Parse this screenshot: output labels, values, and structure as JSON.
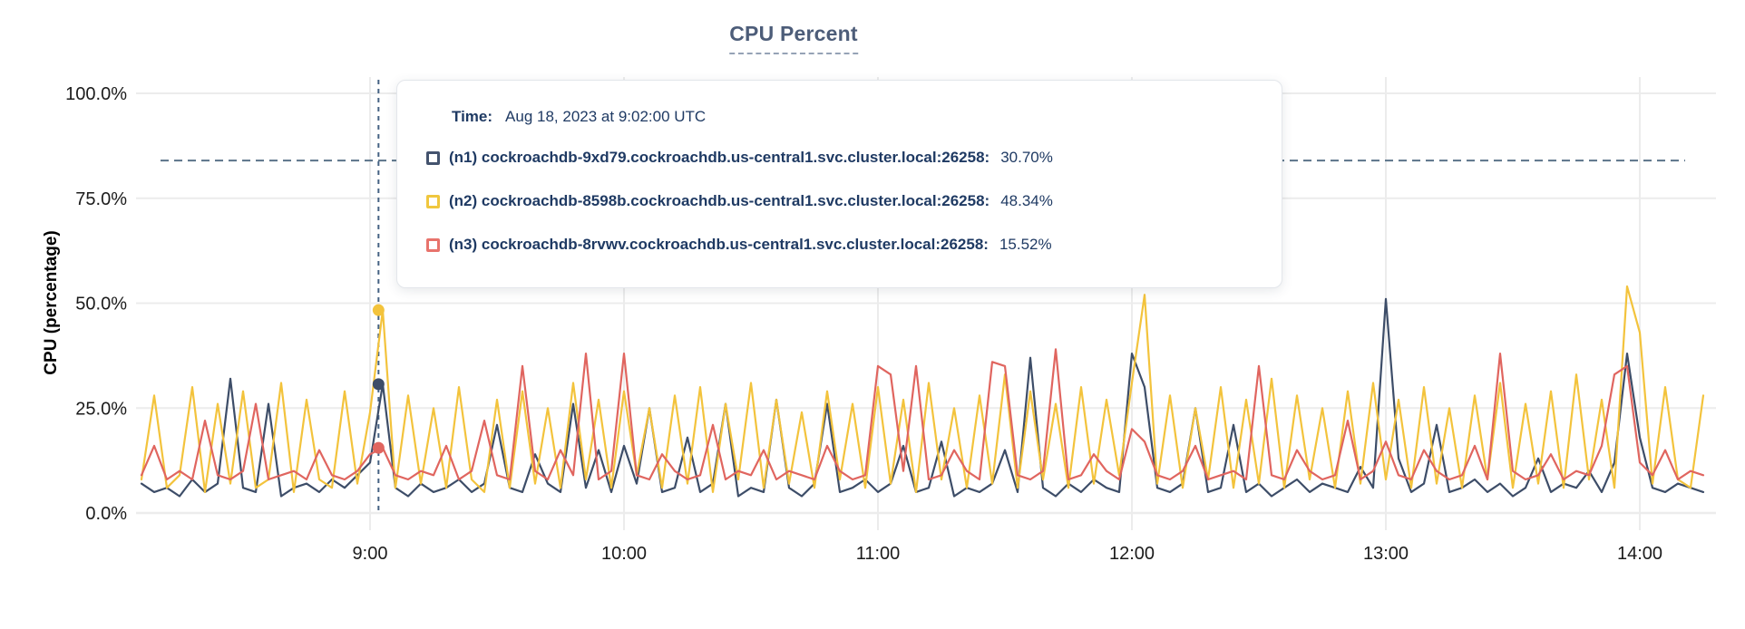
{
  "title": "CPU Percent",
  "y_axis": {
    "title": "CPU (percentage)",
    "tick_labels": [
      "100.0%",
      "75.0%",
      "50.0%",
      "25.0%",
      "0.0%"
    ],
    "tick_values": [
      100,
      75,
      50,
      25,
      0
    ]
  },
  "x_axis": {
    "tick_labels": [
      "9:00",
      "10:00",
      "11:00",
      "12:00",
      "13:00",
      "14:00"
    ],
    "tick_minutes": [
      540,
      600,
      660,
      720,
      780,
      840
    ]
  },
  "threshold_percent": 84,
  "hover": {
    "time_minutes": 542,
    "points": [
      {
        "series": "n2",
        "value": 48.34,
        "color": "#f3c33c"
      },
      {
        "series": "n1",
        "value": 30.7,
        "color": "#3d4d68"
      },
      {
        "series": "n3",
        "value": 15.52,
        "color": "#e0655f"
      }
    ]
  },
  "tooltip": {
    "time_label": "Time:",
    "time_value": "Aug 18, 2023 at 9:02:00 UTC",
    "rows": [
      {
        "series": "n1",
        "swatch_color": "#44536e",
        "label": "(n1) cockroachdb-9xd79.cockroachdb.us-central1.svc.cluster.local:26258:",
        "value": "30.70%"
      },
      {
        "series": "n2",
        "swatch_color": "#f0c73e",
        "label": "(n2) cockroachdb-8598b.cockroachdb.us-central1.svc.cluster.local:26258:",
        "value": "48.34%"
      },
      {
        "series": "n3",
        "swatch_color": "#e8736c",
        "label": "(n3) cockroachdb-8rvwv.cockroachdb.us-central1.svc.cluster.local:26258:",
        "value": "15.52%"
      }
    ]
  },
  "colors": {
    "grid": "#ececec",
    "threshold_line": "#5a7389",
    "hover_line": "#456283",
    "title_text": "#4d5d79",
    "tooltip_text": "#1f3a63",
    "axis_text": "#1b1b1b"
  },
  "chart_data": {
    "type": "line",
    "title": "CPU Percent",
    "xlabel": "",
    "ylabel": "CPU (percentage)",
    "ylim": [
      0,
      100
    ],
    "grid": true,
    "x_unit": "minutes-of-day",
    "x_start_minutes": 486,
    "x_step_minutes": 3,
    "series": [
      {
        "name": "(n1) cockroachdb-9xd79.cockroachdb.us-central1.svc.cluster.local:26258",
        "color": "#3d4d68",
        "values": [
          7,
          5,
          6,
          4,
          8,
          5,
          7,
          32,
          6,
          5,
          26,
          4,
          6,
          7,
          5,
          8,
          6,
          9,
          12,
          30.7,
          6,
          4,
          7,
          5,
          6,
          8,
          5,
          7,
          21,
          6,
          5,
          14,
          7,
          5,
          26,
          6,
          15,
          5,
          16,
          7,
          25,
          5,
          6,
          18,
          5,
          7,
          26,
          4,
          6,
          5,
          27,
          6,
          4,
          7,
          26,
          5,
          6,
          8,
          5,
          7,
          16,
          5,
          6,
          17,
          4,
          6,
          5,
          7,
          15,
          5,
          37,
          6,
          4,
          7,
          5,
          8,
          6,
          5,
          38,
          30,
          6,
          5,
          7,
          25,
          5,
          6,
          21,
          5,
          7,
          4,
          6,
          8,
          5,
          7,
          6,
          5,
          11,
          6,
          51,
          13,
          5,
          7,
          21,
          5,
          6,
          8,
          5,
          7,
          4,
          6,
          13,
          5,
          7,
          6,
          10,
          5,
          12,
          38,
          18,
          6,
          5,
          7,
          6,
          5
        ]
      },
      {
        "name": "(n2) cockroachdb-8598b.cockroachdb.us-central1.svc.cluster.local:26258",
        "color": "#f3c33c",
        "values": [
          8,
          28,
          6,
          9,
          30,
          5,
          26,
          7,
          29,
          6,
          8,
          31,
          5,
          27,
          8,
          6,
          29,
          7,
          24,
          48.34,
          6,
          28,
          7,
          25,
          6,
          30,
          8,
          5,
          27,
          6,
          29,
          7,
          25,
          6,
          31,
          8,
          27,
          6,
          29,
          9,
          25,
          6,
          28,
          7,
          30,
          5,
          26,
          8,
          31,
          6,
          27,
          7,
          24,
          6,
          29,
          8,
          26,
          6,
          30,
          7,
          27,
          5,
          31,
          8,
          25,
          6,
          28,
          7,
          33,
          6,
          29,
          8,
          26,
          6,
          30,
          7,
          27,
          9,
          31,
          52,
          7,
          28,
          6,
          25,
          8,
          30,
          6,
          27,
          7,
          32,
          6,
          28,
          8,
          25,
          6,
          29,
          7,
          31,
          8,
          27,
          6,
          30,
          7,
          25,
          6,
          28,
          8,
          31,
          6,
          26,
          7,
          29,
          6,
          33,
          8,
          27,
          6,
          54,
          43,
          7,
          30,
          8,
          6,
          28
        ]
      },
      {
        "name": "(n3) cockroachdb-8rvwv.cockroachdb.us-central1.svc.cluster.local:26258",
        "color": "#e0655f",
        "values": [
          9,
          16,
          8,
          10,
          8,
          22,
          9,
          8,
          10,
          26,
          8,
          9,
          10,
          8,
          15,
          9,
          8,
          10,
          14,
          15.52,
          9,
          8,
          10,
          9,
          16,
          8,
          10,
          22,
          9,
          8,
          35,
          10,
          8,
          15,
          9,
          38,
          8,
          10,
          38,
          9,
          8,
          14,
          10,
          8,
          9,
          21,
          8,
          10,
          9,
          15,
          8,
          10,
          9,
          8,
          16,
          10,
          8,
          9,
          35,
          33,
          10,
          35,
          8,
          9,
          15,
          10,
          8,
          36,
          35,
          9,
          8,
          10,
          39,
          8,
          9,
          14,
          10,
          8,
          20,
          17,
          9,
          8,
          10,
          16,
          8,
          9,
          10,
          8,
          35,
          9,
          8,
          15,
          10,
          8,
          9,
          22,
          8,
          10,
          17,
          9,
          8,
          15,
          10,
          8,
          9,
          16,
          8,
          38,
          10,
          8,
          9,
          14,
          8,
          10,
          9,
          16,
          33,
          35,
          12,
          9,
          15,
          8,
          10,
          9
        ]
      }
    ]
  }
}
